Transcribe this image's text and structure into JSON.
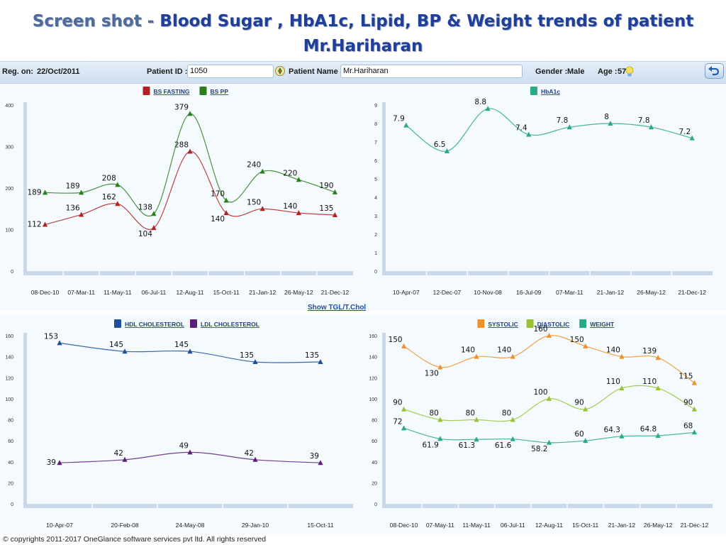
{
  "title": {
    "prefix": "Screen shot  - ",
    "main": "Blood Sugar , HbA1c, Lipid, BP & Weight trends of patient",
    "line2": "Mr.Hariharan"
  },
  "info": {
    "reg_label": "Reg. on:",
    "reg_value": "22/Oct/2011",
    "pid_label": "Patient ID :",
    "pid_value": "1050",
    "pname_label": "Patient Name :",
    "pname_value": "Mr.Hariharan",
    "gender_label": "Gender :",
    "gender_value": "Male",
    "age_label": "Age :",
    "age_value": "57"
  },
  "links": {
    "show_tgl": "Show TGL/T.Chol"
  },
  "footer": "© copyrights 2011-2017 OneGlance software services pvt ltd. All rights reserved",
  "colors": {
    "bs_fasting": "#b22222",
    "bs_pp": "#2e7d1e",
    "hba1c": "#2aa88a",
    "hdl": "#1f4f9a",
    "ldl": "#5b1f7a",
    "systolic": "#f0902a",
    "diastolic": "#9ac331",
    "weight": "#2aa88a"
  },
  "chart_data": [
    {
      "id": "bs",
      "type": "line",
      "categories": [
        "08-Dec-10",
        "07-Mar-11",
        "11-May-11",
        "06-Jul-11",
        "12-Aug-11",
        "15-Oct-11",
        "21-Jan-12",
        "26-May-12",
        "21-Dec-12"
      ],
      "series": [
        {
          "name": "BS FASTING",
          "color": "#b22222",
          "values": [
            112,
            136,
            162,
            104,
            288,
            140,
            150,
            140,
            135
          ]
        },
        {
          "name": "BS PP",
          "color": "#2e7d1e",
          "values": [
            189,
            189,
            208,
            138,
            379,
            170,
            240,
            220,
            190
          ]
        }
      ],
      "ylim": [
        0,
        400
      ],
      "yticks": [
        0,
        100,
        200,
        300,
        400
      ],
      "legend": "top-center",
      "grid": false
    },
    {
      "id": "hba",
      "type": "line",
      "categories": [
        "10-Apr-07",
        "12-Dec-07",
        "10-Nov-08",
        "16-Jul-09",
        "07-Mar-11",
        "21-Jan-12",
        "26-May-12",
        "21-Dec-12"
      ],
      "series": [
        {
          "name": "HbA1c",
          "color": "#2aa88a",
          "values": [
            7.9,
            6.5,
            8.8,
            7.4,
            7.8,
            8,
            7.8,
            7.2
          ]
        }
      ],
      "ylim": [
        0,
        9
      ],
      "yticks": [
        0,
        1,
        2,
        3,
        4,
        5,
        6,
        7,
        8,
        9
      ],
      "legend": "top-center",
      "grid": false
    },
    {
      "id": "chol",
      "type": "line",
      "categories": [
        "10-Apr-07",
        "20-Feb-08",
        "24-May-08",
        "29-Jan-10",
        "15-Oct-11"
      ],
      "series": [
        {
          "name": "HDL CHOLESTEROL",
          "color": "#1f4f9a",
          "values": [
            153,
            145,
            145,
            135,
            135
          ]
        },
        {
          "name": "LDL CHOLESTEROL",
          "color": "#5b1f7a",
          "values": [
            39,
            42,
            49,
            42,
            39
          ]
        }
      ],
      "ylim": [
        0,
        160
      ],
      "yticks": [
        0,
        20,
        40,
        60,
        80,
        100,
        120,
        140,
        160
      ],
      "legend": "top-center",
      "grid": false
    },
    {
      "id": "bp",
      "type": "line",
      "categories": [
        "08-Dec-10",
        "07-May-11",
        "11-May-11",
        "06-Jul-11",
        "12-Aug-11",
        "15-Oct-11",
        "21-Jan-12",
        "26-May-12",
        "21-Dec-12"
      ],
      "series": [
        {
          "name": "SYSTOLIC",
          "color": "#f0902a",
          "values": [
            150,
            130,
            140,
            140,
            160,
            150,
            140,
            139,
            115
          ]
        },
        {
          "name": "DIASTOLIC",
          "color": "#9ac331",
          "values": [
            90,
            80,
            80,
            80,
            100,
            90,
            110,
            110,
            90
          ]
        },
        {
          "name": "WEIGHT",
          "color": "#2aa88a",
          "values": [
            72,
            61.9,
            61.3,
            61.6,
            58.2,
            60,
            64.3,
            64.8,
            68
          ]
        }
      ],
      "ylim": [
        0,
        160
      ],
      "yticks": [
        0,
        20,
        40,
        60,
        80,
        100,
        120,
        140,
        160
      ],
      "legend": "top-center",
      "grid": false
    }
  ]
}
